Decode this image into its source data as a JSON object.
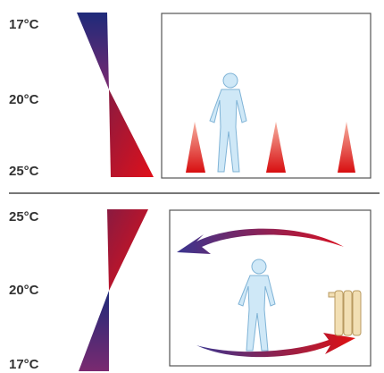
{
  "panels": [
    {
      "labels": [
        "17°C",
        "20°C",
        "25°C"
      ]
    },
    {
      "labels": [
        "25°C",
        "20°C",
        "17°C"
      ]
    }
  ]
}
